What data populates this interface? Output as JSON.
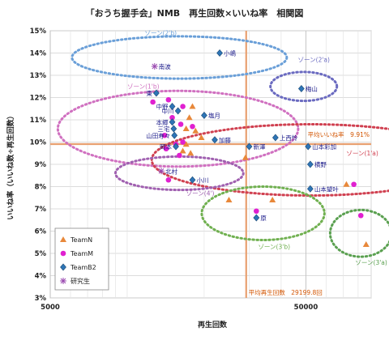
{
  "chart_data": {
    "type": "scatter",
    "title": "「おうち握手会」NMB　再生回数×いいね率　相関図",
    "xlabel": "再生回数",
    "ylabel": "いいね率（いいね数÷再生回数）",
    "x_scale": "log",
    "xlim": [
      5000,
      90000
    ],
    "ylim": [
      3,
      15
    ],
    "x_ticks": [
      {
        "value": 5000,
        "label": "5000"
      },
      {
        "value": 50000,
        "label": "50000"
      }
    ],
    "y_ticks": [
      {
        "value": 15,
        "label": "15%"
      },
      {
        "value": 14,
        "label": "14%"
      },
      {
        "value": 13,
        "label": "13%"
      },
      {
        "value": 12,
        "label": "12%"
      },
      {
        "value": 11,
        "label": "11%"
      },
      {
        "value": 10,
        "label": "10%"
      },
      {
        "value": 9,
        "label": "9%"
      },
      {
        "value": 8,
        "label": "8%"
      },
      {
        "value": 7,
        "label": "7%"
      },
      {
        "value": 6,
        "label": "6%"
      },
      {
        "value": 5,
        "label": "5%"
      },
      {
        "value": 4,
        "label": "4%"
      },
      {
        "value": 3,
        "label": "3%"
      }
    ],
    "grid": true,
    "legend_position": "bottom-left",
    "average_lines": {
      "x": {
        "value": 29199.8,
        "label": "平均再生回数　29199.8回",
        "color": "#e8a070"
      },
      "y": {
        "value": 9.91,
        "label": "平均いいね率　9.91%",
        "color": "#e8a070"
      }
    },
    "series": [
      {
        "name": "TeamN",
        "marker": "triangle",
        "color": "#e8883a",
        "points": [
          {
            "x": 18000,
            "y": 11.6
          },
          {
            "x": 17500,
            "y": 11.1
          },
          {
            "x": 17000,
            "y": 10.6
          },
          {
            "x": 18500,
            "y": 10.5
          },
          {
            "x": 19500,
            "y": 10.2
          },
          {
            "x": 17000,
            "y": 9.9
          },
          {
            "x": 17700,
            "y": 9.5
          },
          {
            "x": 16500,
            "y": 9.6
          },
          {
            "x": 29000,
            "y": 9.3
          },
          {
            "x": 25000,
            "y": 7.4
          },
          {
            "x": 37000,
            "y": 7.4
          },
          {
            "x": 72000,
            "y": 8.1
          },
          {
            "x": 86000,
            "y": 5.4
          }
        ]
      },
      {
        "name": "TeamM",
        "marker": "circle",
        "color": "#e020d0",
        "points": [
          {
            "x": 12600,
            "y": 11.8
          },
          {
            "x": 14500,
            "y": 11.9
          },
          {
            "x": 16500,
            "y": 11.6
          },
          {
            "x": 15000,
            "y": 11.1
          },
          {
            "x": 16200,
            "y": 10.8
          },
          {
            "x": 18000,
            "y": 10.7
          },
          {
            "x": 14000,
            "y": 10.3
          },
          {
            "x": 16500,
            "y": 10.0
          },
          {
            "x": 15500,
            "y": 9.9
          },
          {
            "x": 14200,
            "y": 9.7
          },
          {
            "x": 16000,
            "y": 9.4
          },
          {
            "x": 14500,
            "y": 8.3
          },
          {
            "x": 32000,
            "y": 6.9
          },
          {
            "x": 77000,
            "y": 8.1
          },
          {
            "x": 82000,
            "y": 6.7
          }
        ]
      },
      {
        "name": "TeamB2",
        "marker": "diamond",
        "color": "#2e75b6",
        "points": [
          {
            "x": 13000,
            "y": 12.2,
            "label": "東"
          },
          {
            "x": 15000,
            "y": 11.6,
            "label": "中野"
          },
          {
            "x": 15800,
            "y": 11.4,
            "label": "中川"
          },
          {
            "x": 20000,
            "y": 11.2,
            "label": "塩月"
          },
          {
            "x": 15000,
            "y": 10.9,
            "label": "本郷"
          },
          {
            "x": 15200,
            "y": 10.6,
            "label": "三宅"
          },
          {
            "x": 15300,
            "y": 10.3,
            "label": "山田寿々"
          },
          {
            "x": 15500,
            "y": 9.8,
            "label": "岡本"
          },
          {
            "x": 22000,
            "y": 10.1,
            "label": "加藤"
          },
          {
            "x": 30000,
            "y": 9.8,
            "label": "新澤"
          },
          {
            "x": 38000,
            "y": 10.2,
            "label": "上西怜"
          },
          {
            "x": 51000,
            "y": 9.8,
            "label": "山本彩加"
          },
          {
            "x": 52000,
            "y": 9.0,
            "label": "横野"
          },
          {
            "x": 52000,
            "y": 7.9,
            "label": "山本望叶"
          },
          {
            "x": 48000,
            "y": 12.4,
            "label": "梅山"
          },
          {
            "x": 23000,
            "y": 14.0,
            "label": "小嶋"
          },
          {
            "x": 18000,
            "y": 8.3,
            "label": "小川"
          },
          {
            "x": 32000,
            "y": 6.6,
            "label": "原"
          }
        ]
      },
      {
        "name": "研究生",
        "marker": "asterisk",
        "color": "#9a4ab0",
        "points": [
          {
            "x": 12800,
            "y": 13.4,
            "label": "南波"
          },
          {
            "x": 13600,
            "y": 8.7,
            "label": "北村"
          }
        ]
      }
    ],
    "zones": [
      {
        "label": "ゾーン(2'b)",
        "color": "#6a9fd8",
        "cx": 16000,
        "cy": 13.8,
        "rx_dec": 0.42,
        "ry": 0.95,
        "label_x": 11700,
        "label_y": 14.8
      },
      {
        "label": "ゾーン(2'a)",
        "color": "#6a6ac0",
        "cx": 49000,
        "cy": 12.5,
        "rx_dec": 0.13,
        "ry": 0.65,
        "label_x": 46500,
        "label_y": 13.6
      },
      {
        "label": "ゾーン(1'b)",
        "color": "#d070c0",
        "cx": 15800,
        "cy": 10.6,
        "rx_dec": 0.47,
        "ry": 1.7,
        "label_x": 10000,
        "label_y": 12.4
      },
      {
        "label": "ゾーン(1'a)",
        "color": "#d04050",
        "cx": 52000,
        "cy": 9.2,
        "rx_dec": 0.62,
        "ry": 1.6,
        "label_x": 72000,
        "label_y": 9.4
      },
      {
        "label": "ゾーン(4')",
        "color": "#a060b0",
        "cx": 16000,
        "cy": 8.6,
        "rx_dec": 0.25,
        "ry": 0.75,
        "label_x": 17000,
        "label_y": 7.6
      },
      {
        "label": "ゾーン(3'b)",
        "color": "#70b050",
        "cx": 34000,
        "cy": 6.8,
        "rx_dec": 0.24,
        "ry": 1.2,
        "label_x": 32500,
        "label_y": 5.2
      },
      {
        "label": "ゾーン(3'a)",
        "color": "#5aa050",
        "cx": 82000,
        "cy": 5.9,
        "rx_dec": 0.12,
        "ry": 1.05,
        "label_x": 78000,
        "label_y": 4.5
      }
    ]
  }
}
